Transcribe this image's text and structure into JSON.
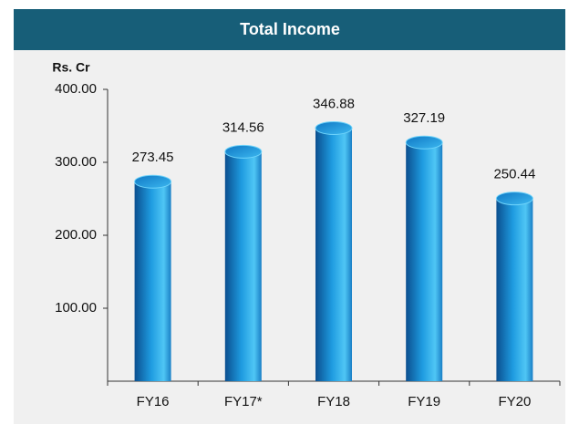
{
  "chart_data": {
    "type": "bar",
    "title": "Total Income",
    "y_label": "Rs. Cr",
    "categories": [
      "FY16",
      "FY17*",
      "FY18",
      "FY19",
      "FY20"
    ],
    "values": [
      273.45,
      314.56,
      346.88,
      327.19,
      250.44
    ],
    "color": "#1a8fd6",
    "ylim": [
      0,
      400
    ],
    "yticks": [
      {
        "value": 100,
        "label": "100.00"
      },
      {
        "value": 200,
        "label": "200.00"
      },
      {
        "value": 300,
        "label": "300.00"
      },
      {
        "value": 400,
        "label": "400.00"
      }
    ]
  }
}
